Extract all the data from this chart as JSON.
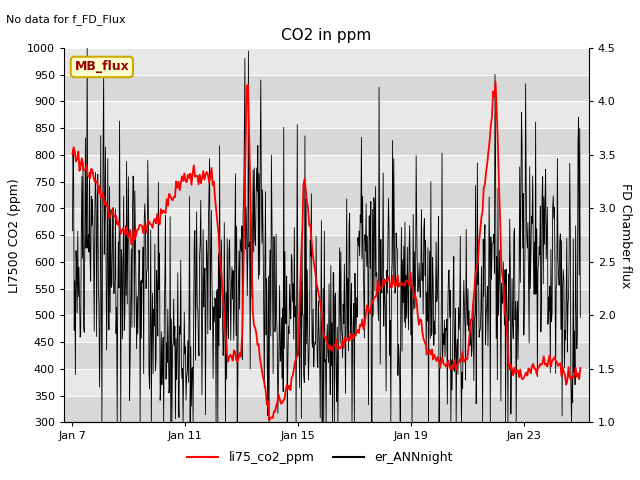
{
  "title": "CO2 in ppm",
  "top_left_text": "No data for f_FD_Flux",
  "ylabel_left": "LI7500 CO2 (ppm)",
  "ylabel_right": "FD Chamber flux",
  "ylim_left": [
    300,
    1000
  ],
  "ylim_right": [
    1.0,
    4.5
  ],
  "yticks_left": [
    300,
    350,
    400,
    450,
    500,
    550,
    600,
    650,
    700,
    750,
    800,
    850,
    900,
    950,
    1000
  ],
  "yticks_right": [
    1.0,
    1.5,
    2.0,
    2.5,
    3.0,
    3.5,
    4.0,
    4.5
  ],
  "xtick_labels": [
    "Jan 7",
    "Jan 11",
    "Jan 15",
    "Jan 19",
    "Jan 23"
  ],
  "xtick_positions": [
    0,
    4,
    8,
    12,
    16
  ],
  "legend_entries": [
    "li75_co2_ppm",
    "er_ANNnight"
  ],
  "legend_colors": [
    "red",
    "black"
  ],
  "box_label": "MB_flux",
  "plot_bg_light": "#e8e8e8",
  "plot_bg_dark": "#d8d8d8",
  "line_color_red": "#ff0000",
  "line_color_black": "#000000",
  "n_days": 18,
  "figsize": [
    6.4,
    4.8
  ],
  "dpi": 100
}
